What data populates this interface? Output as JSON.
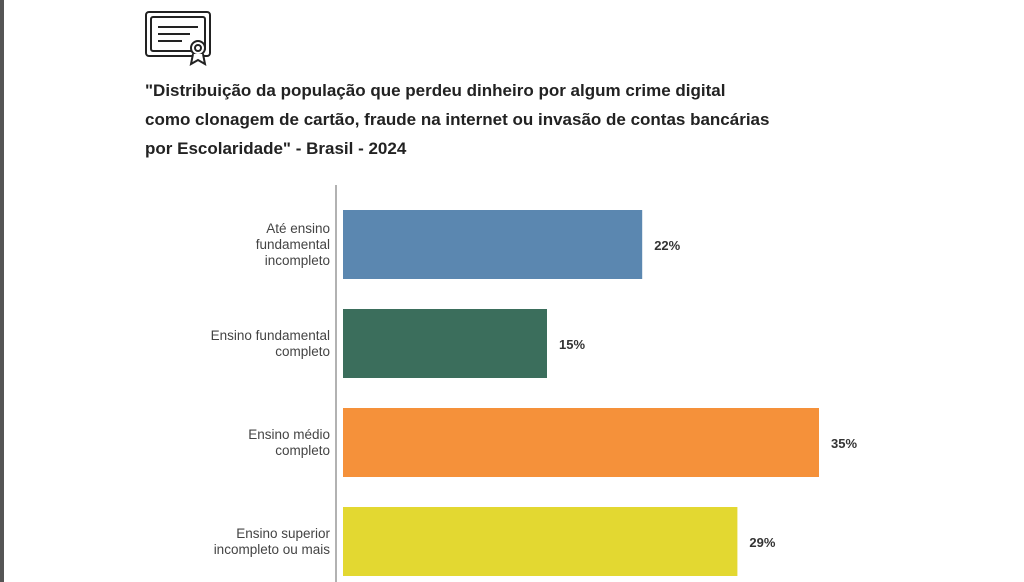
{
  "chart_data": {
    "type": "bar",
    "orientation": "horizontal",
    "title": [
      "\"Distribuição da população que perdeu dinheiro por algum crime digital",
      "como clonagem de cartão, fraude na internet ou invasão de contas bancárias",
      "por Escolaridade\" - Brasil - 2024"
    ],
    "categories": [
      "Até ensino\nfundamental\nincompleto",
      "Ensino fundamental\ncompleto",
      "Ensino médio\ncompleto",
      "Ensino superior\nincompleto ou mais"
    ],
    "values": [
      22,
      15,
      35,
      29
    ],
    "value_labels": [
      "22%",
      "15%",
      "35%",
      "29%"
    ],
    "colors": [
      "#5b87b0",
      "#3b6e5c",
      "#f5913a",
      "#e3d831"
    ]
  }
}
